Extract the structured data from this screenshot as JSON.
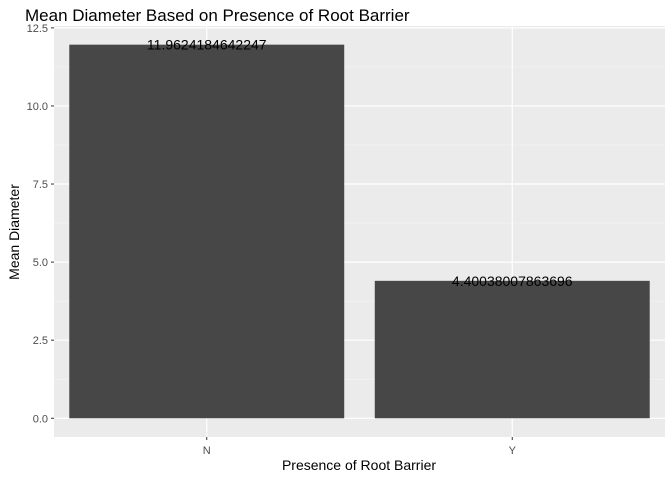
{
  "chart_data": {
    "type": "bar",
    "title": "Mean Diameter Based on Presence of Root Barrier",
    "xlabel": "Presence of Root Barrier",
    "ylabel": "Mean Diameter",
    "categories": [
      "N",
      "Y"
    ],
    "values": [
      11.9624184642247,
      4.40038007863696
    ],
    "data_labels": [
      "11.9624184642247",
      "4.40038007863696"
    ],
    "ylim": [
      -0.6,
      12.56
    ],
    "yticks": [
      0.0,
      2.5,
      5.0,
      7.5,
      10.0,
      12.5
    ],
    "ytick_labels": [
      "0.0",
      "2.5",
      "5.0",
      "7.5",
      "10.0",
      "12.5"
    ],
    "grid": true,
    "colors": {
      "bar": "#474747",
      "panel": "#ebebeb",
      "grid_major": "#ffffff",
      "grid_minor": "#f5f5f5",
      "tick_label": "#4d4d4d"
    }
  }
}
